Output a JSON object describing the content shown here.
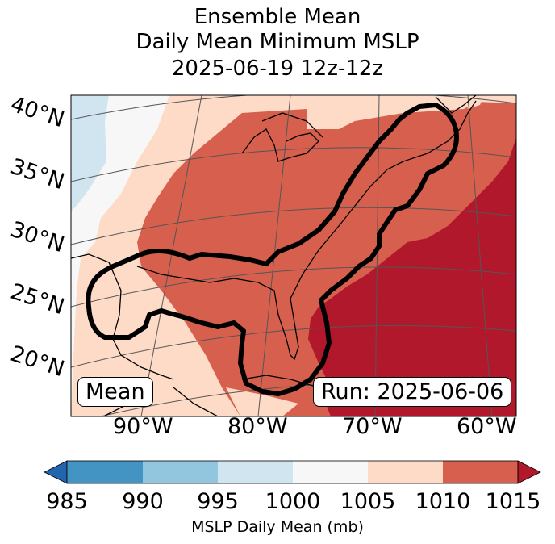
{
  "title": {
    "line1": "Ensemble Mean",
    "line2": "Daily Mean Minimum MSLP",
    "line3": "2025-06-19 12z-12z"
  },
  "map": {
    "lat_labels": [
      "40°N",
      "35°N",
      "30°N",
      "25°N",
      "20°N"
    ],
    "lon_labels": [
      "90°W",
      "80°W",
      "70°W",
      "60°W"
    ],
    "mean_box": "Mean",
    "run_box": "Run: 2025-06-06",
    "contour_note": "black contour outlines ensemble mean minimum MSLP region",
    "colors": {
      "c985": "#2166ac",
      "c990": "#4393c3",
      "c995": "#92c5de",
      "c1000": "#d1e5f0",
      "c1005": "#f7f7f7",
      "c1010": "#fddbc7",
      "c1015": "#d6604d",
      "over": "#b2182b",
      "land_line": "#000000",
      "contour": "#000000",
      "grid": "#555555"
    }
  },
  "colorbar": {
    "ticks": [
      "985",
      "990",
      "995",
      "1000",
      "1005",
      "1010",
      "1015"
    ],
    "colors": [
      "#4393c3",
      "#92c5de",
      "#d1e5f0",
      "#f7f7f7",
      "#fddbc7",
      "#d6604d"
    ],
    "under_color": "#2166ac",
    "over_color": "#b2182b",
    "label": "MSLP Daily Mean (mb)"
  }
}
